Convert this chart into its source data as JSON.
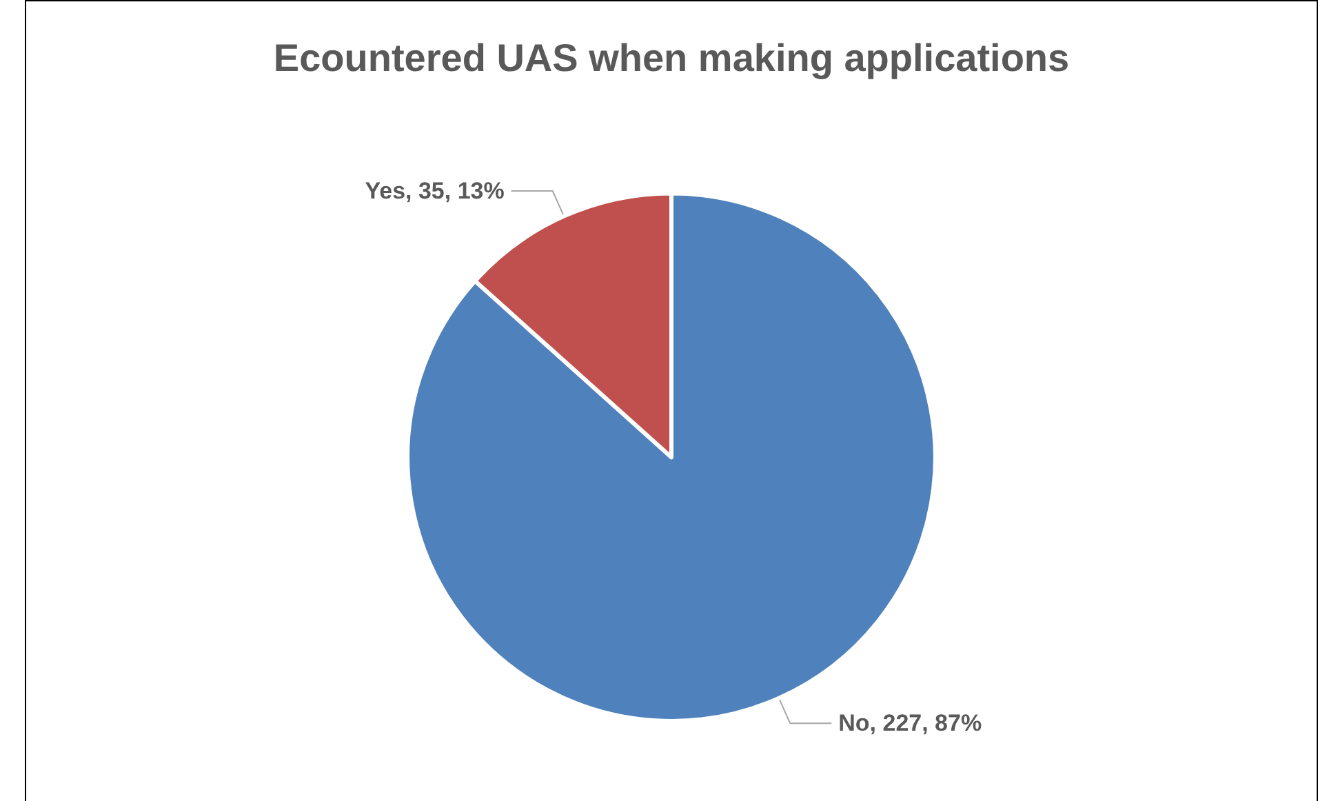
{
  "chart_data": {
    "type": "pie",
    "title": "Ecountered UAS when making applications",
    "categories": [
      "No",
      "Yes"
    ],
    "values": [
      227,
      35
    ],
    "colors": [
      "#4f81bd",
      "#c0504d"
    ],
    "value_labels": [
      "227, 87%",
      "35, 13%"
    ],
    "legend": false
  }
}
